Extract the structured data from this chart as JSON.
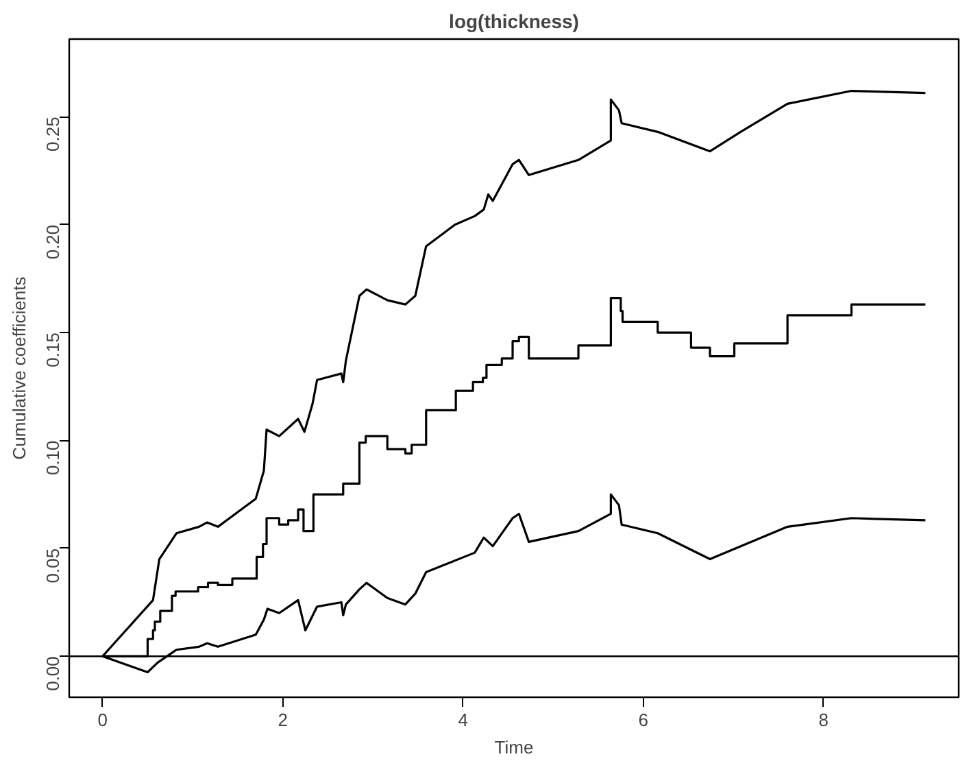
{
  "chart_data": {
    "type": "line",
    "title": "log(thickness)",
    "xlabel": "Time",
    "ylabel": "Cumulative coefficients",
    "xlim": [
      -0.37,
      9.5
    ],
    "ylim": [
      -0.019,
      0.286
    ],
    "xticks": [
      0,
      2,
      4,
      6,
      8
    ],
    "yticks": [
      {
        "value": 0,
        "label": "0.00"
      },
      {
        "value": 0.05,
        "label": "0.05"
      },
      {
        "value": 0.1,
        "label": "0.10"
      },
      {
        "value": 0.15,
        "label": "0.15"
      },
      {
        "value": 0.2,
        "label": "0.20"
      },
      {
        "value": 0.25,
        "label": "0.25"
      }
    ],
    "grid": false,
    "line_style": "solid",
    "ref_lines": [
      {
        "axis": "y",
        "value": 0,
        "color": "#000000"
      }
    ],
    "series": [
      {
        "color": "#000000",
        "x": [
          0,
          0.56,
          0.63,
          0.82,
          1.07,
          1.16,
          1.28,
          1.7,
          1.79,
          1.82,
          1.96,
          2.17,
          2.24,
          2.33,
          2.38,
          2.65,
          2.67,
          2.7,
          2.85,
          2.93,
          3.16,
          3.36,
          3.47,
          3.59,
          3.91,
          4.13,
          4.23,
          4.28,
          4.33,
          4.55,
          4.62,
          4.73,
          5.28,
          5.64,
          5.64,
          5.73,
          5.76,
          6.16,
          6.74,
          7.08,
          7.6,
          8.31,
          9.13
        ],
        "values": [
          0,
          0.026,
          0.045,
          0.057,
          0.06,
          0.062,
          0.06,
          0.073,
          0.086,
          0.105,
          0.102,
          0.11,
          0.104,
          0.117,
          0.128,
          0.131,
          0.127,
          0.137,
          0.167,
          0.17,
          0.165,
          0.163,
          0.167,
          0.19,
          0.2,
          0.204,
          0.207,
          0.214,
          0.211,
          0.228,
          0.23,
          0.223,
          0.23,
          0.239,
          0.258,
          0.253,
          0.247,
          0.243,
          0.234,
          0.243,
          0.256,
          0.262,
          0.261
        ]
      },
      {
        "type": "step",
        "color": "#000000",
        "x": [
          0,
          0.5,
          0.56,
          0.58,
          0.64,
          0.77,
          0.81,
          1.06,
          1.17,
          1.28,
          1.44,
          1.71,
          1.78,
          1.82,
          1.96,
          2.06,
          2.17,
          2.23,
          2.34,
          2.67,
          2.85,
          2.92,
          3.16,
          3.36,
          3.43,
          3.59,
          3.92,
          4.11,
          4.22,
          4.26,
          4.43,
          4.55,
          4.62,
          4.73,
          5.28,
          5.64,
          5.75,
          5.77,
          6.16,
          6.53,
          6.74,
          7.01,
          7.6,
          8.31,
          9.13
        ],
        "values": [
          0,
          0.008,
          0.012,
          0.016,
          0.021,
          0.028,
          0.03,
          0.032,
          0.034,
          0.033,
          0.036,
          0.046,
          0.052,
          0.064,
          0.061,
          0.063,
          0.068,
          0.058,
          0.075,
          0.08,
          0.099,
          0.102,
          0.096,
          0.094,
          0.098,
          0.114,
          0.123,
          0.127,
          0.129,
          0.135,
          0.138,
          0.146,
          0.148,
          0.138,
          0.144,
          0.166,
          0.16,
          0.155,
          0.15,
          0.143,
          0.139,
          0.145,
          0.158,
          0.163,
          0.163
        ]
      },
      {
        "color": "#000000",
        "x": [
          0,
          0.5,
          0.61,
          0.82,
          1.07,
          1.16,
          1.28,
          1.7,
          1.79,
          1.83,
          1.96,
          2.17,
          2.25,
          2.38,
          2.65,
          2.67,
          2.7,
          2.85,
          2.93,
          3.16,
          3.36,
          3.47,
          3.59,
          4.13,
          4.23,
          4.33,
          4.55,
          4.62,
          4.73,
          5.28,
          5.64,
          5.64,
          5.73,
          5.76,
          6.16,
          6.74,
          7.6,
          8.31,
          9.13
        ],
        "values": [
          0,
          -0.0074,
          -0.003,
          0.003,
          0.0044,
          0.006,
          0.0044,
          0.01,
          0.017,
          0.022,
          0.02,
          0.026,
          0.012,
          0.023,
          0.025,
          0.019,
          0.024,
          0.031,
          0.034,
          0.027,
          0.024,
          0.029,
          0.039,
          0.048,
          0.055,
          0.051,
          0.064,
          0.066,
          0.053,
          0.058,
          0.066,
          0.075,
          0.07,
          0.061,
          0.057,
          0.045,
          0.06,
          0.064,
          0.063
        ]
      }
    ]
  }
}
